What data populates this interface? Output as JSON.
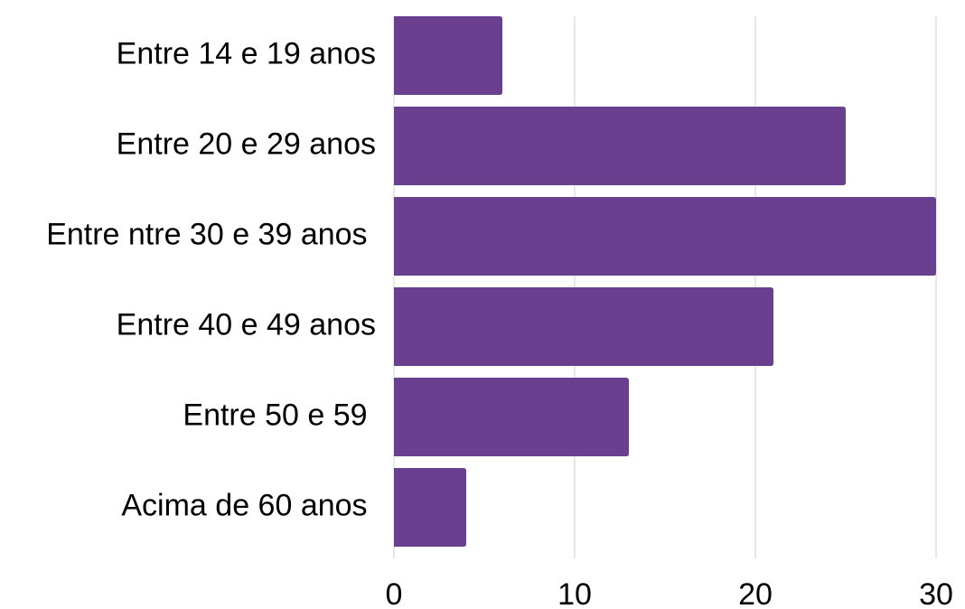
{
  "chart_data": {
    "type": "hbar",
    "categories": [
      "Entre 14 e 19 anos",
      "Entre 20 e 29 anos",
      "Entre ntre 30 e 39 anos ",
      "Entre 40 e 49 anos",
      "Entre 50 e 59 ",
      "Acima de 60 anos "
    ],
    "values": [
      6,
      25,
      30,
      21,
      13,
      4
    ],
    "color": "#6a3f8f",
    "xlim": [
      0,
      30
    ],
    "xticks": [
      0,
      10,
      20,
      30
    ],
    "grid": true
  }
}
